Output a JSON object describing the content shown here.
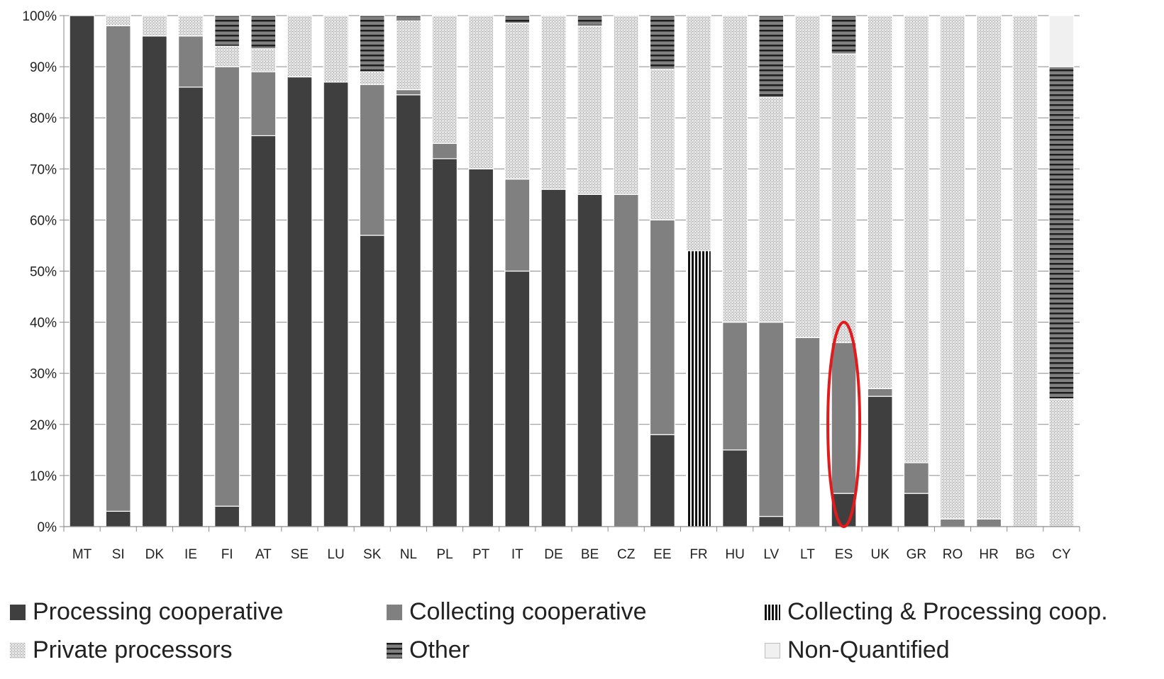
{
  "chart_data": {
    "type": "bar",
    "stacked": true,
    "title": "",
    "xlabel": "",
    "ylabel": "",
    "ylim": [
      0,
      100
    ],
    "y_ticks": [
      "0%",
      "10%",
      "20%",
      "30%",
      "40%",
      "50%",
      "60%",
      "70%",
      "80%",
      "90%",
      "100%"
    ],
    "grid": true,
    "legend_position": "bottom",
    "categories": [
      "MT",
      "SI",
      "DK",
      "IE",
      "FI",
      "AT",
      "SE",
      "LU",
      "SK",
      "NL",
      "PL",
      "PT",
      "IT",
      "DE",
      "BE",
      "CZ",
      "EE",
      "FR",
      "HU",
      "LV",
      "LT",
      "ES",
      "UK",
      "GR",
      "RO",
      "HR",
      "BG",
      "CY"
    ],
    "series": [
      {
        "name": "Processing cooperative",
        "key": "processing",
        "color": "#3f3f3f",
        "values": [
          100,
          3,
          96,
          86,
          4,
          76.5,
          88,
          87,
          57,
          84.5,
          72,
          70,
          50,
          66,
          65,
          0,
          18,
          0,
          15,
          2,
          0,
          6.5,
          25.5,
          6.5,
          0,
          0,
          0,
          0
        ]
      },
      {
        "name": "Collecting cooperative",
        "key": "collecting",
        "color": "#808080",
        "values": [
          0,
          95,
          0,
          10,
          86,
          12.5,
          0,
          0,
          29.5,
          1,
          3,
          0,
          18,
          0,
          0,
          65,
          42,
          0,
          25,
          38,
          37,
          29.5,
          1.5,
          6,
          1.5,
          1.5,
          0,
          0
        ]
      },
      {
        "name": "Collecting & Processing coop.",
        "key": "collproc",
        "color": "#4a4a4a",
        "values": [
          0,
          0,
          0,
          0,
          0,
          0,
          0,
          0,
          0,
          0,
          0,
          0,
          0,
          0,
          0,
          0,
          0,
          54,
          0,
          0,
          0,
          0,
          0,
          0,
          0,
          0,
          0,
          0
        ]
      },
      {
        "name": "Private processors",
        "key": "private",
        "color": "#c8c8c8",
        "values": [
          0,
          2,
          4,
          4,
          4,
          4.5,
          12,
          13,
          2.5,
          13.5,
          25,
          30,
          30.5,
          34,
          33,
          35,
          29.5,
          46,
          60,
          44,
          63,
          56.5,
          73,
          87.5,
          98.5,
          98.5,
          100,
          25
        ]
      },
      {
        "name": "Other",
        "key": "other",
        "color": "#7a7a7a",
        "values": [
          0,
          0,
          0,
          0,
          6,
          6.5,
          0,
          0,
          11,
          1,
          0,
          0,
          1.5,
          0,
          2,
          0,
          10.5,
          0,
          0,
          16,
          0,
          7.5,
          0,
          0,
          0,
          0,
          0,
          65
        ]
      },
      {
        "name": "Non-Quantified",
        "key": "nonquant",
        "color": "#f0f0f0",
        "values": [
          0,
          0,
          0,
          0,
          0,
          0,
          0,
          0,
          0,
          0,
          0,
          0,
          0,
          0,
          0,
          0,
          0,
          0,
          0,
          0,
          0,
          0,
          0,
          0,
          0,
          0,
          0,
          10
        ]
      }
    ],
    "annotations": [
      {
        "type": "ellipse",
        "category": "ES",
        "y_range": [
          0,
          40
        ],
        "color": "#e31a1c"
      }
    ]
  }
}
